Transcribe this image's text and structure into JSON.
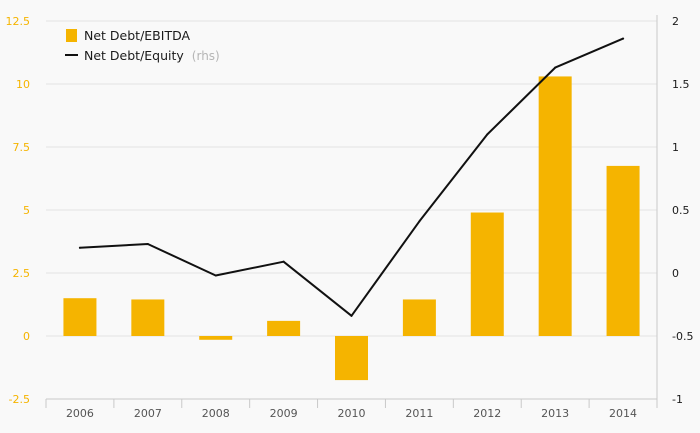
{
  "chart_data": {
    "type": "bar",
    "categories": [
      "2006",
      "2007",
      "2008",
      "2009",
      "2010",
      "2011",
      "2012",
      "2013",
      "2014"
    ],
    "series": [
      {
        "name": "Net Debt/EBITDA",
        "type": "bar",
        "axis": "left",
        "color": "#f5b400",
        "values": [
          1.5,
          1.45,
          -0.15,
          0.6,
          -1.75,
          1.45,
          4.9,
          10.3,
          6.75
        ]
      },
      {
        "name": "Net Debt/Equity",
        "name_suffix": "(rhs)",
        "type": "line",
        "axis": "right",
        "color": "#111111",
        "values": [
          0.2,
          0.23,
          -0.02,
          0.09,
          -0.34,
          0.41,
          1.1,
          1.63,
          1.86
        ]
      }
    ],
    "left_axis": {
      "range": [
        -2.5,
        12.5
      ],
      "ticks": [
        12.5,
        10,
        7.5,
        5,
        2.5,
        0,
        -2.5
      ],
      "tick_labels": [
        "12.5",
        "10",
        "7.5",
        "5",
        "2.5",
        "0",
        "-2.5"
      ],
      "label_color": "#f5b400"
    },
    "right_axis": {
      "range": [
        -1,
        2
      ],
      "ticks": [
        2,
        1.5,
        1,
        0.5,
        0,
        -0.5,
        -1
      ],
      "tick_labels": [
        "2",
        "1.5",
        "1",
        "0.5",
        "0",
        "-0.5",
        "-1"
      ],
      "label_color": "#1a1a1a"
    },
    "grid": true,
    "legend_position": "top-left"
  }
}
